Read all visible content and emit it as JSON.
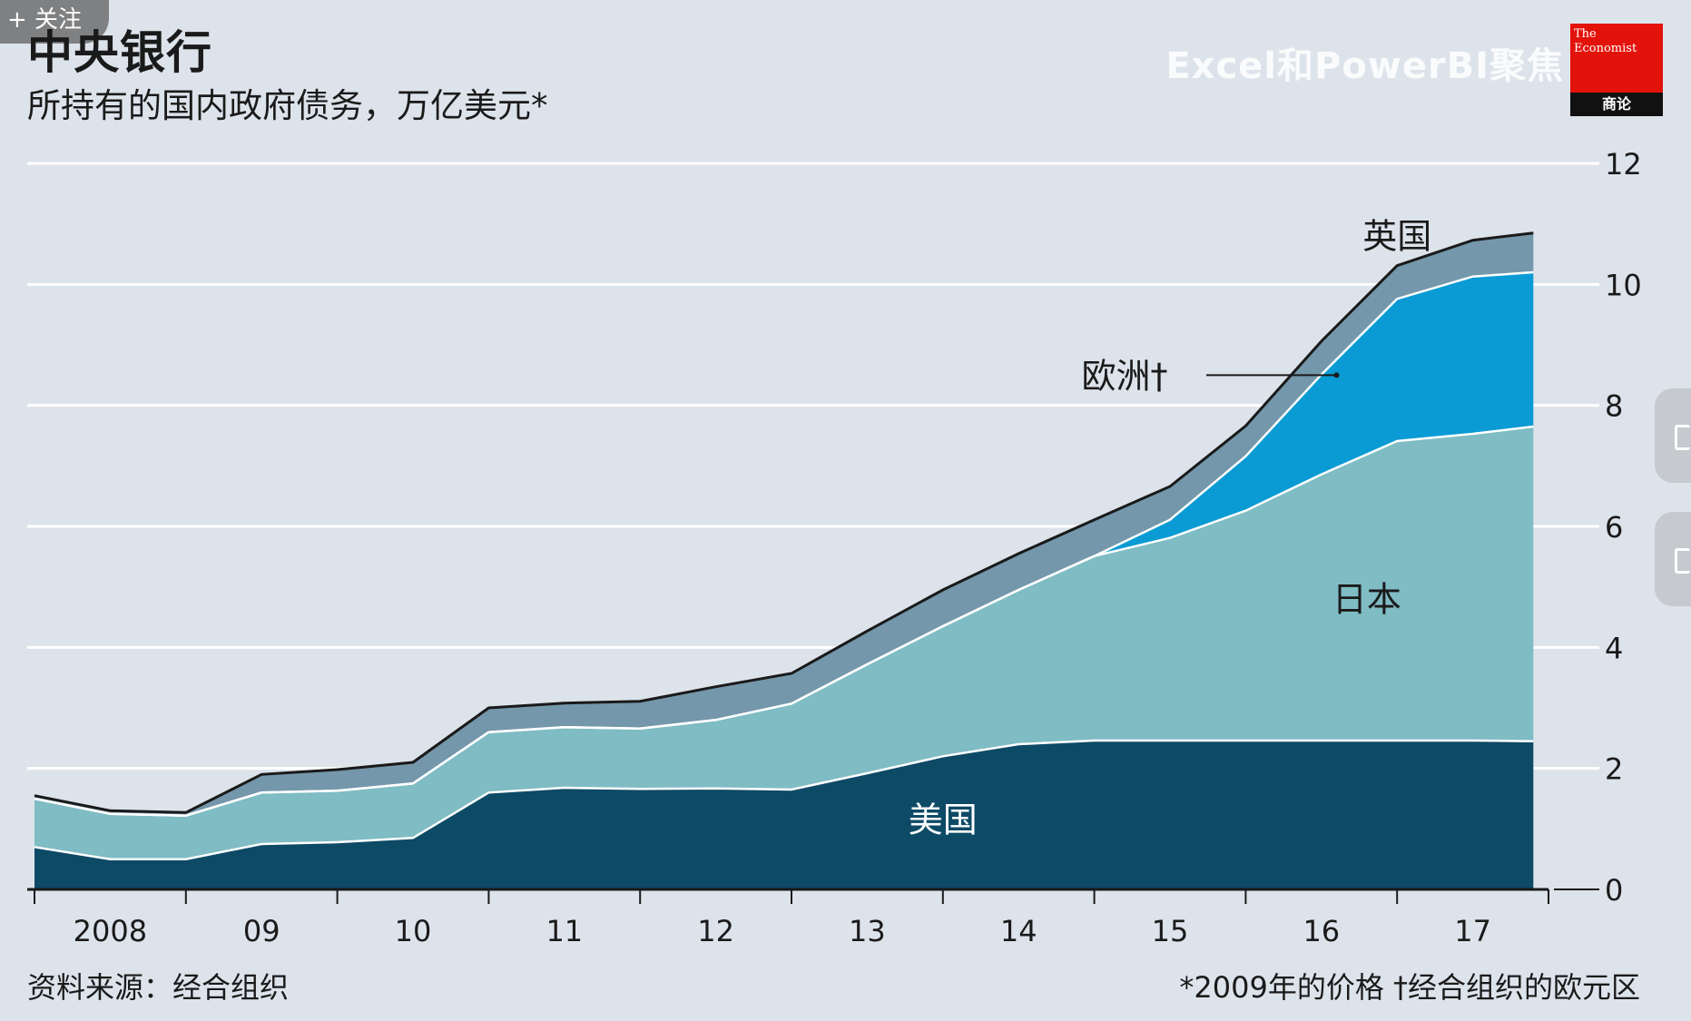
{
  "header": {
    "title": "中央银行",
    "subtitle": "所持有的国内政府债务，万亿美元*"
  },
  "overlay": {
    "follow_label": "+ 关注",
    "watermark": "Excel和PowerBI聚焦",
    "logo_text": "The Economist",
    "logo_sub": "商论"
  },
  "footer": {
    "source": "资料来源：经合组织",
    "note": "*2009年的价格  †经合组织的欧元区"
  },
  "colors": {
    "background": "#dde3ea",
    "us": "#0d4a66",
    "japan": "#7fbcc4",
    "europe": "#0a9bd4",
    "uk": "#7497ab",
    "grid": "#ffffff",
    "top_line": "#1a1a1a"
  },
  "chart_data": {
    "type": "area",
    "stacked": true,
    "title": "中央银行",
    "subtitle": "所持有的国内政府债务，万亿美元*",
    "x_tick_labels": [
      "2008",
      "09",
      "10",
      "11",
      "12",
      "13",
      "14",
      "15",
      "16",
      "17"
    ],
    "ylim": [
      0,
      12
    ],
    "y_ticks": [
      0,
      2,
      4,
      6,
      8,
      10,
      12
    ],
    "y_axis_side": "right",
    "grid": true,
    "x": [
      2008.0,
      2008.5,
      2009.0,
      2009.5,
      2010.0,
      2010.5,
      2011.0,
      2011.5,
      2012.0,
      2012.5,
      2013.0,
      2013.5,
      2014.0,
      2014.5,
      2015.0,
      2015.5,
      2016.0,
      2016.5,
      2017.0,
      2017.5,
      2017.9
    ],
    "series": [
      {
        "name": "美国",
        "values": [
          0.7,
          0.5,
          0.5,
          0.75,
          0.78,
          0.85,
          1.6,
          1.68,
          1.66,
          1.67,
          1.65,
          1.92,
          2.2,
          2.4,
          2.46,
          2.46,
          2.46,
          2.46,
          2.46,
          2.46,
          2.45
        ]
      },
      {
        "name": "日本",
        "values": [
          0.8,
          0.75,
          0.72,
          0.85,
          0.85,
          0.9,
          1.0,
          1.0,
          1.0,
          1.13,
          1.42,
          1.8,
          2.15,
          2.55,
          3.05,
          3.35,
          3.8,
          4.4,
          4.95,
          5.07,
          5.2
        ]
      },
      {
        "name": "欧洲†",
        "values": [
          0,
          0,
          0,
          0,
          0,
          0,
          0,
          0,
          0,
          0,
          0,
          0,
          0,
          0,
          0,
          0.3,
          0.9,
          1.65,
          2.35,
          2.6,
          2.55
        ]
      },
      {
        "name": "英国",
        "values": [
          0.05,
          0.05,
          0.05,
          0.3,
          0.35,
          0.35,
          0.4,
          0.4,
          0.45,
          0.55,
          0.5,
          0.55,
          0.6,
          0.6,
          0.6,
          0.55,
          0.5,
          0.55,
          0.55,
          0.6,
          0.65
        ]
      }
    ]
  }
}
